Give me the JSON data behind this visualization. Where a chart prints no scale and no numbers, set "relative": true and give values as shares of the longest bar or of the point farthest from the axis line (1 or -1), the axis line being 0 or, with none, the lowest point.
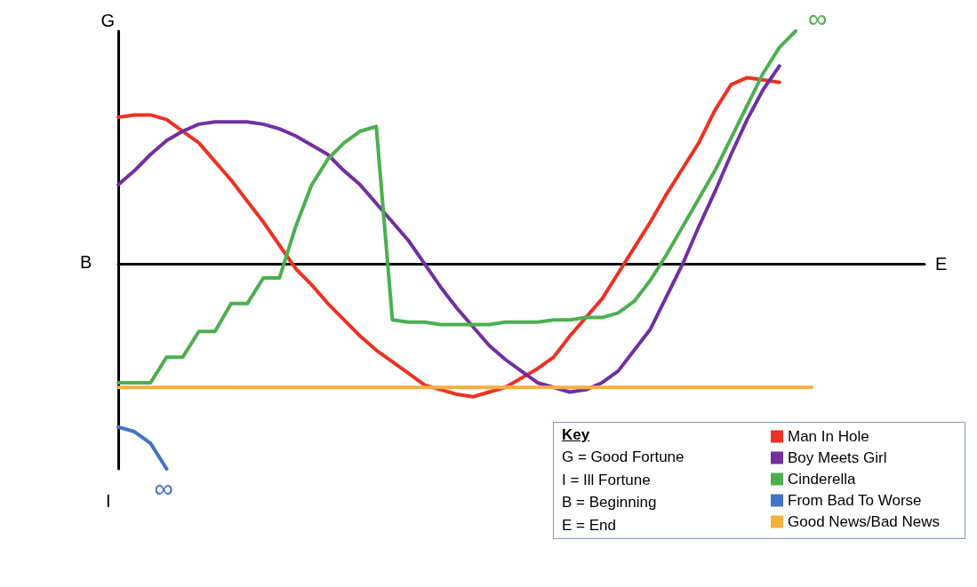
{
  "chart_data": {
    "type": "line",
    "relative": true,
    "xlabel": "E",
    "ylabel": "G",
    "legend_title": "Key",
    "legend": "bottom right",
    "grid": false,
    "marker": "none",
    "line_style": "solid",
    "categories": [
      null,
      null,
      null,
      null,
      null,
      null,
      null,
      null,
      null,
      null,
      null,
      null,
      null,
      null,
      null,
      null,
      null,
      null,
      null,
      null,
      null,
      null,
      null,
      null,
      null,
      null,
      null,
      null,
      null,
      null,
      null,
      null,
      null,
      null,
      null,
      null,
      null,
      null,
      null,
      null,
      null,
      null,
      null,
      null,
      null,
      null,
      null,
      null,
      null,
      null,
      null
    ],
    "annotations": [
      "B",
      "I",
      "G = Good Fortune",
      "I = Ill Fortune",
      "B = Beginning",
      "E = End",
      "∞",
      "∞"
    ],
    "series": [
      {
        "name": "Man In Hole",
        "color": "#ea3323",
        "values": [
          0.63,
          0.64,
          0.64,
          0.62,
          0.57,
          0.52,
          0.44,
          0.36,
          0.27,
          0.18,
          0.08,
          -0.02,
          -0.09,
          -0.17,
          -0.24,
          -0.31,
          -0.37,
          -0.42,
          -0.47,
          -0.52,
          -0.54,
          -0.56,
          -0.57,
          -0.55,
          -0.53,
          -0.49,
          -0.45,
          -0.4,
          -0.31,
          -0.23,
          -0.15,
          -0.04,
          0.07,
          0.18,
          0.3,
          0.41,
          0.52,
          0.66,
          0.77,
          0.8,
          0.79,
          0.78,
          null,
          null,
          null,
          null,
          null,
          null,
          null,
          null,
          null
        ]
      },
      {
        "name": "Boy Meets Girl",
        "color": "#7030a0",
        "values": [
          0.34,
          0.4,
          0.47,
          0.53,
          0.57,
          0.6,
          0.61,
          0.61,
          0.61,
          0.6,
          0.58,
          0.55,
          0.51,
          0.47,
          0.4,
          0.34,
          0.26,
          0.18,
          0.1,
          0,
          -0.1,
          -0.19,
          -0.27,
          -0.35,
          -0.41,
          -0.46,
          -0.51,
          -0.53,
          -0.55,
          -0.54,
          -0.51,
          -0.46,
          -0.37,
          -0.28,
          -0.14,
          0,
          0.16,
          0.31,
          0.47,
          0.62,
          0.75,
          0.85,
          null,
          null,
          null,
          null,
          null,
          null,
          null,
          null,
          null
        ]
      },
      {
        "name": "Cinderella",
        "color": "#4caf50",
        "values": [
          -0.51,
          -0.51,
          -0.51,
          -0.4,
          -0.4,
          -0.29,
          -0.29,
          -0.17,
          -0.17,
          -0.06,
          -0.06,
          0.16,
          0.34,
          0.45,
          0.52,
          0.57,
          0.59,
          -0.24,
          -0.25,
          -0.25,
          -0.26,
          -0.26,
          -0.26,
          -0.26,
          -0.25,
          -0.25,
          -0.25,
          -0.24,
          -0.24,
          -0.23,
          -0.23,
          -0.21,
          -0.16,
          -0.07,
          0.04,
          0.16,
          0.28,
          0.4,
          0.54,
          0.68,
          0.82,
          0.93,
          1,
          null,
          null,
          null,
          null,
          null,
          null,
          null,
          null
        ]
      },
      {
        "name": "From Bad To Worse",
        "color": "#4472c4",
        "values": [
          -0.7,
          -0.72,
          -0.77,
          -0.88,
          null,
          null,
          null,
          null,
          null,
          null,
          null,
          null,
          null,
          null,
          null,
          null,
          null,
          null,
          null,
          null,
          null,
          null,
          null,
          null,
          null,
          null,
          null,
          null,
          null,
          null,
          null,
          null,
          null,
          null,
          null,
          null,
          null,
          null,
          null,
          null,
          null,
          null,
          null,
          null,
          null,
          null,
          null,
          null,
          null,
          null,
          null
        ]
      },
      {
        "name": "Good News/Bad News",
        "color": "#f4b03e",
        "values": [
          -0.53,
          -0.53,
          -0.53,
          -0.53,
          -0.53,
          -0.53,
          -0.53,
          -0.53,
          -0.53,
          -0.53,
          -0.53,
          -0.53,
          -0.53,
          -0.53,
          -0.53,
          -0.53,
          -0.53,
          -0.53,
          -0.53,
          -0.53,
          -0.53,
          -0.53,
          -0.53,
          -0.53,
          -0.53,
          -0.53,
          -0.53,
          -0.53,
          -0.53,
          -0.53,
          -0.53,
          -0.53,
          -0.53,
          -0.53,
          -0.53,
          -0.53,
          -0.53,
          -0.53,
          -0.53,
          -0.53,
          -0.53,
          -0.53,
          -0.53,
          -0.53,
          null,
          null,
          null,
          null,
          null,
          null,
          null
        ]
      }
    ]
  }
}
